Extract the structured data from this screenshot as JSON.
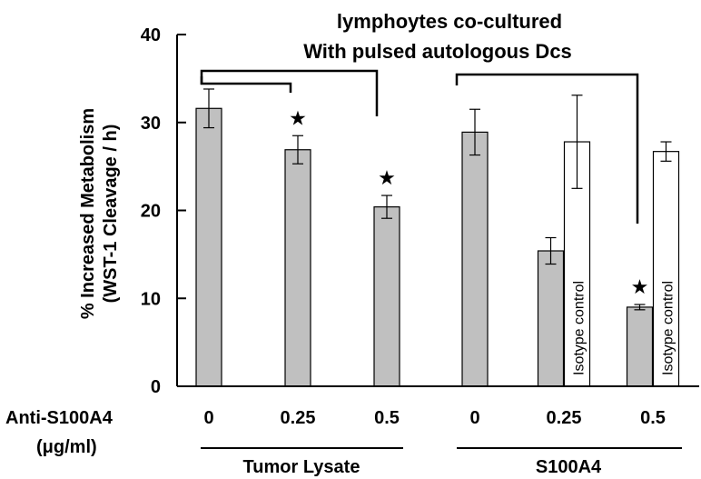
{
  "chart_data": {
    "type": "bar",
    "title_lines": [
      "lymphoytes co-cultured",
      "With pulsed autologous Dcs"
    ],
    "ylabel_lines": [
      "% Increased Metabolism",
      "(WST-1  Cleavage  / h)"
    ],
    "ylim": [
      0,
      40
    ],
    "yticks": [
      0,
      10,
      20,
      30,
      40
    ],
    "row_label": "Anti-S100A4",
    "row_unit": "(μg/ml)",
    "categories": [
      "0",
      "0.25",
      "0.5",
      "0",
      "0.25",
      "0.5"
    ],
    "groups": [
      {
        "label": "Tumor Lysate",
        "categories": [
          "0",
          "0.25",
          "0.5"
        ]
      },
      {
        "label": "S100A4",
        "categories": [
          "0",
          "0.25",
          "0.5"
        ]
      }
    ],
    "series": [
      {
        "fill": "#c0c0c0",
        "values": [
          31.6,
          26.9,
          20.4,
          28.9,
          15.4,
          9.0
        ],
        "errors": [
          2.2,
          1.6,
          1.3,
          2.6,
          1.5,
          0.3
        ],
        "significant": [
          false,
          true,
          true,
          false,
          false,
          true
        ]
      },
      {
        "name": "Isotype control",
        "fill": "#ffffff",
        "values": [
          null,
          null,
          null,
          null,
          27.8,
          26.7
        ],
        "errors": [
          null,
          null,
          null,
          null,
          5.3,
          1.1
        ]
      }
    ],
    "significance_marker": "★",
    "grid": false
  }
}
